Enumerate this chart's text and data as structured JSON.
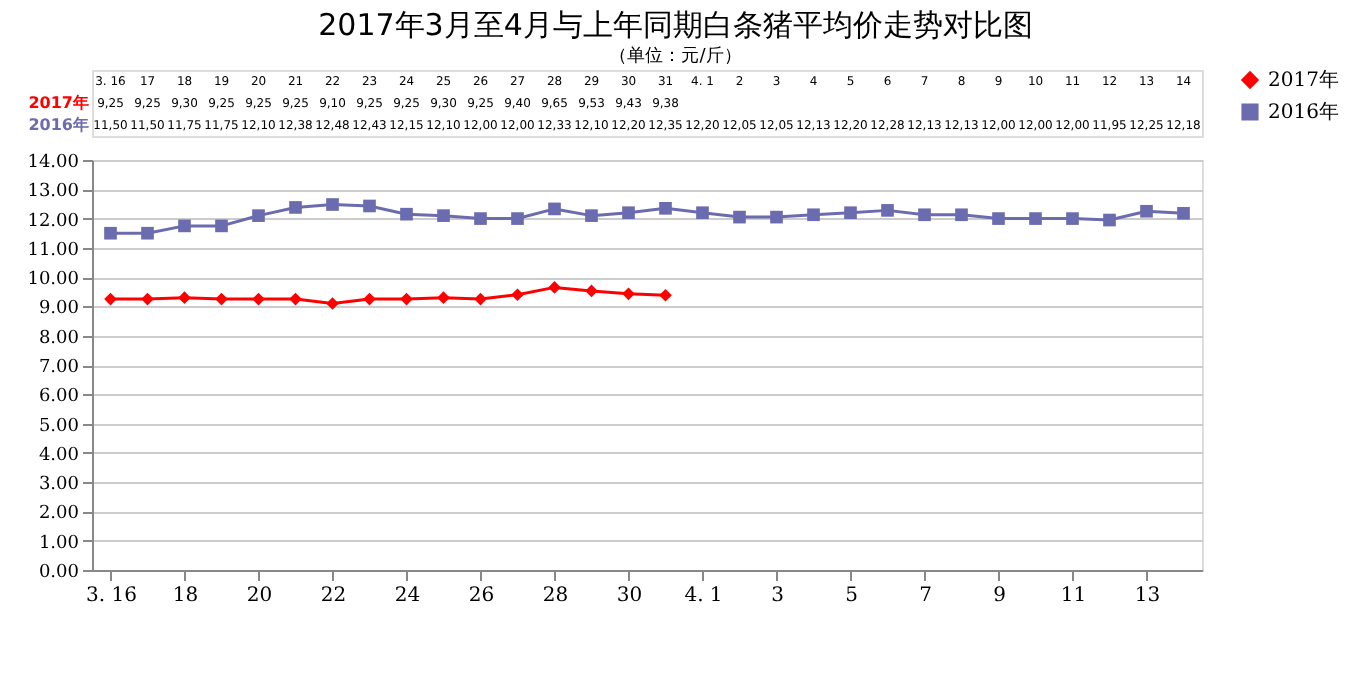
{
  "chart_data": {
    "type": "line",
    "title": "2017年3月至4月与上年同期白条猪平均价走势对比图",
    "subtitle": "（单位：元/斤）",
    "categories": [
      "3. 16",
      "17",
      "18",
      "19",
      "20",
      "21",
      "22",
      "23",
      "24",
      "25",
      "26",
      "27",
      "28",
      "29",
      "30",
      "31",
      "4. 1",
      "2",
      "3",
      "4",
      "5",
      "6",
      "7",
      "8",
      "9",
      "10",
      "11",
      "12",
      "13",
      "14"
    ],
    "series": [
      {
        "name": "2017年",
        "color": "#ff0000",
        "marker": "diamond",
        "value_labels": [
          "9,25",
          "9,25",
          "9,30",
          "9,25",
          "9,25",
          "9,25",
          "9,10",
          "9,25",
          "9,25",
          "9,30",
          "9,25",
          "9,40",
          "9,65",
          "9,53",
          "9,43",
          "9,38",
          null,
          null,
          null,
          null,
          null,
          null,
          null,
          null,
          null,
          null,
          null,
          null,
          null,
          null
        ],
        "values": [
          9.25,
          9.25,
          9.3,
          9.25,
          9.25,
          9.25,
          9.1,
          9.25,
          9.25,
          9.3,
          9.25,
          9.4,
          9.65,
          9.53,
          9.43,
          9.38,
          null,
          null,
          null,
          null,
          null,
          null,
          null,
          null,
          null,
          null,
          null,
          null,
          null,
          null
        ]
      },
      {
        "name": "2016年",
        "color": "#6b6bb0",
        "marker": "square",
        "value_labels": [
          "11,50",
          "11,50",
          "11,75",
          "11,75",
          "12,10",
          "12,38",
          "12,48",
          "12,43",
          "12,15",
          "12,10",
          "12,00",
          "12,00",
          "12,33",
          "12,10",
          "12,20",
          "12,35",
          "12,20",
          "12,05",
          "12,05",
          "12,13",
          "12,20",
          "12,28",
          "12,13",
          "12,13",
          "12,00",
          "12,00",
          "12,00",
          "11,95",
          "12,25",
          "12,18"
        ],
        "values": [
          11.5,
          11.5,
          11.75,
          11.75,
          12.1,
          12.38,
          12.48,
          12.43,
          12.15,
          12.1,
          12.0,
          12.0,
          12.33,
          12.1,
          12.2,
          12.35,
          12.2,
          12.05,
          12.05,
          12.13,
          12.2,
          12.28,
          12.13,
          12.13,
          12.0,
          12.0,
          12.0,
          11.95,
          12.25,
          12.18
        ]
      }
    ],
    "ylim": [
      0,
      14
    ],
    "yticks": [
      {
        "value": 0,
        "label": "0.00"
      },
      {
        "value": 1,
        "label": "1.00"
      },
      {
        "value": 2,
        "label": "2.00"
      },
      {
        "value": 3,
        "label": "3.00"
      },
      {
        "value": 4,
        "label": "4.00"
      },
      {
        "value": 5,
        "label": "5.00"
      },
      {
        "value": 6,
        "label": "6.00"
      },
      {
        "value": 7,
        "label": "7.00"
      },
      {
        "value": 8,
        "label": "8.00"
      },
      {
        "value": 9,
        "label": "9.00"
      },
      {
        "value": 10,
        "label": "10.00"
      },
      {
        "value": 11,
        "label": "11.00"
      },
      {
        "value": 12,
        "label": "12.00"
      },
      {
        "value": 13,
        "label": "13.00"
      },
      {
        "value": 14,
        "label": "14.00"
      }
    ],
    "grid": "y",
    "legend": "right",
    "line_style": "solid"
  }
}
